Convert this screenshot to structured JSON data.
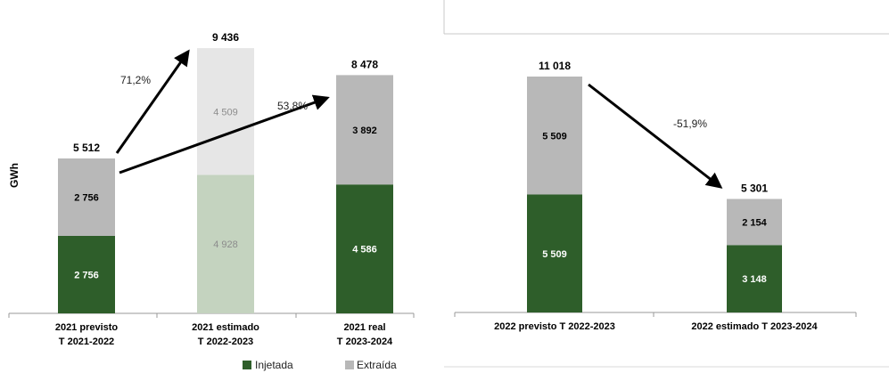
{
  "chart_data": [
    {
      "type": "bar",
      "stacked": true,
      "ylabel": "GWh",
      "categories": [
        [
          "2021 previsto",
          "T 2021-2022"
        ],
        [
          "2021 estimado",
          "T 2022-2023"
        ],
        [
          "2021 real",
          "T 2023-2024"
        ]
      ],
      "series": [
        {
          "name": "Injetada",
          "values": [
            2756,
            4928,
            4586
          ],
          "labels": [
            "2 756",
            "4 928",
            "4 586"
          ]
        },
        {
          "name": "Extraída",
          "values": [
            2756,
            4509,
            3892
          ],
          "labels": [
            "2 756",
            "4 509",
            "3 892"
          ]
        }
      ],
      "totals": [
        5512,
        9436,
        8478
      ],
      "total_labels": [
        "5 512",
        "9 436",
        "8 478"
      ],
      "faded_categories": [
        1
      ],
      "annotations": [
        "71,2%",
        "53,8%"
      ],
      "ylim": [
        0,
        10000
      ],
      "grid": false,
      "legend": "bottom",
      "colors": {
        "Injetada": "#2e5e2a",
        "Extraída": "#b8b8b8",
        "Injetada_faded": "#c4d3bf",
        "Extraída_faded": "#e6e6e6",
        "faded_label": "#8c8c8c"
      }
    },
    {
      "type": "bar",
      "stacked": true,
      "categories": [
        "2022 previsto T 2022-2023",
        "2022 estimado T 2023-2024"
      ],
      "series": [
        {
          "name": "Injetada",
          "values": [
            5509,
            3148
          ],
          "labels": [
            "5 509",
            "3 148"
          ]
        },
        {
          "name": "Extraída",
          "values": [
            5509,
            2154
          ],
          "labels": [
            "5 509",
            "2 154"
          ]
        }
      ],
      "totals": [
        11018,
        5301
      ],
      "total_labels": [
        "11 018",
        "5 301"
      ],
      "annotations": [
        "-51,9%"
      ],
      "ylim": [
        0,
        12000
      ],
      "grid": false,
      "colors": {
        "Injetada": "#2e5e2a",
        "Extraída": "#b8b8b8"
      }
    }
  ],
  "legend": [
    {
      "name": "Injetada",
      "color": "#2e5e2a"
    },
    {
      "name": "Extraída",
      "color": "#b8b8b8"
    }
  ]
}
